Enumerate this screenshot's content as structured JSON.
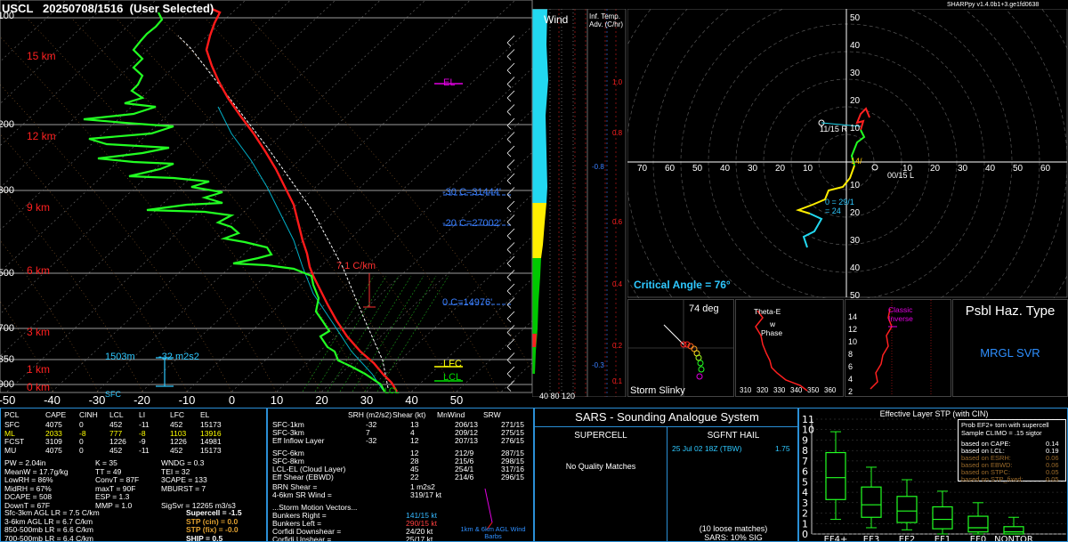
{
  "header": {
    "station": "USCL",
    "datetime": "20250708/1516",
    "selection": "(User Selected)",
    "version": "SHARPpy v1.4.0b1+3.ge1fd0638"
  },
  "skewt": {
    "height_labels": [
      "15 km",
      "12 km",
      "9 km",
      "6 km",
      "3 km",
      "1 km",
      "0 km"
    ],
    "pressure_labels": [
      "100",
      "200",
      "300",
      "500",
      "700",
      "850",
      "900"
    ],
    "temp_ticks": [
      "-50",
      "-40",
      "-30",
      "-20",
      "-10",
      "0",
      "10",
      "20",
      "30",
      "40",
      "50"
    ],
    "el_label": "EL",
    "lfc_label": "LFC",
    "lcl_label": "LCL",
    "iso_30": "-30 C=31444'",
    "iso_20": "-20 C=27002'",
    "iso_0": "0 C=14976'",
    "lapse_rate": "7.1 C/km",
    "eff_depth": "1503m",
    "eff_srh": "-32 m2s2",
    "sfc_label": "SFC",
    "lcl_small": "LCL"
  },
  "wind_col": {
    "title": "Wind",
    "inf_title": "Inf. Temp. Adv. (C/hr)",
    "adv_ticks": [
      "1.0",
      "0.8",
      "0.6",
      "0.4",
      "0.2",
      "0.1"
    ],
    "neg_ticks": [
      "-0.8",
      "-0.3"
    ],
    "bottom_label": "40 80 120"
  },
  "hodograph": {
    "rings_pos": [
      "10",
      "20",
      "30",
      "40",
      "50",
      "60",
      "70"
    ],
    "rings_neg": [
      "70",
      "60",
      "50",
      "40",
      "30",
      "20",
      "10"
    ],
    "y_pos": [
      "50",
      "40",
      "30",
      "20",
      "10"
    ],
    "y_neg": [
      "10",
      "20",
      "30",
      "40",
      "50"
    ],
    "critical_angle": "Critical Angle = 76°",
    "left_mover": "11/15 R",
    "right_mover": "00/15 L",
    "m1": "14/",
    "m2": "0 = 29/1",
    "m3": "= 24"
  },
  "storm_slinky": {
    "angle": "74 deg",
    "title": "Storm Slinky"
  },
  "theta_panel": {
    "label1": "Theta-E",
    "label2": "w",
    "label3": "Phase",
    "ticks": [
      "310",
      "320",
      "330",
      "340",
      "350",
      "360"
    ]
  },
  "vrot_panel": {
    "ticks": [
      "14",
      "12",
      "10",
      "8",
      "6",
      "4",
      "2"
    ],
    "label1": "Classic",
    "label2": "Inverse"
  },
  "hazard": {
    "title": "Psbl Haz. Type",
    "value": "MRGL SVR"
  },
  "thermo": {
    "headers": [
      "PCL",
      "CAPE",
      "CINH",
      "LCL",
      "LI",
      "LFC",
      "EL"
    ],
    "rows": [
      {
        "name": "SFC",
        "vals": [
          "4075",
          "0",
          "452",
          "-11",
          "452",
          "15173"
        ],
        "color": "#ffffff"
      },
      {
        "name": "ML",
        "vals": [
          "2033",
          "-8",
          "777",
          "-8",
          "1103",
          "13916"
        ],
        "color": "#ffffff"
      },
      {
        "name": "FCST",
        "vals": [
          "3109",
          "0",
          "1226",
          "-9",
          "1226",
          "14981"
        ],
        "color": "#ffffff"
      },
      {
        "name": "MU",
        "vals": [
          "4075",
          "0",
          "452",
          "-11",
          "452",
          "15173"
        ],
        "color": "#ffffff"
      }
    ],
    "col1": [
      "PW = 2.04in",
      "MeanW = 17.7g/kg",
      "LowRH = 86%",
      "MidRH = 67%",
      "DCAPE = 508",
      "DownT = 67F"
    ],
    "col2": [
      "K = 35",
      "TT = 49",
      "ConvT = 87F",
      "maxT = 90F",
      "ESP = 1.3",
      "MMP = 1.0"
    ],
    "col3": [
      "WNDG = 0.3",
      "TEI = 32",
      "3CAPE = 133",
      "MBURST = 7",
      "",
      "SigSvr = 12265 m3/s3"
    ],
    "lapse": [
      "Sfc-3km AGL LR = 7.5 C/km",
      "3-6km AGL LR = 6.7 C/km",
      "850-500mb LR = 6.6 C/km",
      "700-500mb LR = 6.4 C/km"
    ],
    "comp": [
      {
        "label": "Supercell = -1.5",
        "color": "#ffffff"
      },
      {
        "label": "STP (cin) = 0.0",
        "color": "#e0a030"
      },
      {
        "label": "STP (fix) = -0.0",
        "color": "#e0a030"
      },
      {
        "label": "SHIP = 0.5",
        "color": "#ffffff"
      }
    ]
  },
  "kinematics": {
    "headers": [
      "SRH (m2/s2)",
      "Shear (kt)",
      "MnWind",
      "SRW"
    ],
    "rows": [
      {
        "name": "SFC-1km",
        "vals": [
          "-32",
          "13",
          "206/13",
          "271/15"
        ]
      },
      {
        "name": "SFC-3km",
        "vals": [
          "7",
          "4",
          "209/12",
          "275/15"
        ]
      },
      {
        "name": "Eff Inflow Layer",
        "vals": [
          "-32",
          "12",
          "207/13",
          "276/15"
        ]
      },
      {
        "name": "SFC-6km",
        "vals": [
          "",
          "12",
          "212/9",
          "287/15"
        ]
      },
      {
        "name": "SFC-8km",
        "vals": [
          "",
          "28",
          "215/6",
          "298/15"
        ]
      },
      {
        "name": "LCL-EL (Cloud Layer)",
        "vals": [
          "",
          "45",
          "254/1",
          "317/16"
        ]
      },
      {
        "name": "Eff Shear (EBWD)",
        "vals": [
          "",
          "22",
          "214/6",
          "296/15"
        ]
      }
    ],
    "brn": "BRN Shear =",
    "brn_val": "1 m2s2",
    "srwind": "4-6km SR Wind =",
    "srwind_val": "319/17 kt",
    "storm_vectors": "...Storm Motion Vectors...",
    "vectors": [
      {
        "label": "Bunkers Right =",
        "val": "141/15 kt",
        "color": "#35b8ff"
      },
      {
        "label": "Bunkers Left =",
        "val": "290/15 kt",
        "color": "#ff4040"
      },
      {
        "label": "Corfidi Downshear =",
        "val": "24/20 kt",
        "color": "#ffffff"
      },
      {
        "label": "Corfidi Upshear =",
        "val": "25/17 kt",
        "color": "#ffffff"
      }
    ],
    "barb_caption": "1km & 6km AGL Wind Barbs"
  },
  "sars": {
    "title": "SARS - Sounding Analogue System",
    "supercell": "SUPERCELL",
    "sgfnt": "SGFNT HAIL",
    "match_date": "25 Jul 02 18Z (TBW)",
    "match_val": "1.75",
    "no_match": "No Quality Matches",
    "loose": "(10 loose matches)",
    "sars_pct": "SARS: 10% SIG"
  },
  "stp": {
    "title": "Effective Layer STP (with CIN)",
    "note_title": "Prob EF2+ torn with supercell",
    "note_sub": "Sample CLIMO = .15 sigtor",
    "probs": [
      {
        "label": "based on CAPE:",
        "val": "0.14",
        "color": "#ffffff"
      },
      {
        "label": "based on LCL:",
        "val": "0.19",
        "color": "#ffffff"
      },
      {
        "label": "based on ESRH:",
        "val": "0.06",
        "color": "#9a6a2a"
      },
      {
        "label": "based on EBWD:",
        "val": "0.06",
        "color": "#9a6a2a"
      },
      {
        "label": "based on STPC:",
        "val": "0.05",
        "color": "#9a6a2a"
      },
      {
        "label": "based on STP_fixed:",
        "val": "0.05",
        "color": "#9a6a2a"
      }
    ],
    "yticks": [
      "11",
      "10",
      "9",
      "8",
      "7",
      "6",
      "5",
      "4",
      "3",
      "2",
      "1",
      "0"
    ],
    "cats": [
      "EF4+",
      "EF3",
      "EF2",
      "EF1",
      "EF0",
      "NONTOR"
    ]
  },
  "chart_data": [
    {
      "type": "line",
      "title": "USCL 20250708/1516 (User Selected)",
      "xlabel": "",
      "ylabel": "",
      "xlim": [
        -50,
        50
      ],
      "series": []
    },
    {
      "type": "box",
      "title": "Effective Layer STP (with CIN)",
      "categories": [
        "EF4+",
        "EF3",
        "EF2",
        "EF1",
        "EF0",
        "NONTOR"
      ],
      "ylim": [
        0,
        11
      ],
      "boxes": [
        {
          "min": 1.4,
          "q1": 3.3,
          "median": 5.4,
          "q3": 7.8,
          "max": 9.8
        },
        {
          "min": 0.6,
          "q1": 1.6,
          "median": 2.8,
          "q3": 4.5,
          "max": 6.4
        },
        {
          "min": 0.4,
          "q1": 1.1,
          "median": 2.2,
          "q3": 3.6,
          "max": 5.2
        },
        {
          "min": 0.0,
          "q1": 0.5,
          "median": 1.4,
          "q3": 2.6,
          "max": 4.1
        },
        {
          "min": 0.0,
          "q1": 0.2,
          "median": 0.6,
          "q3": 1.7,
          "max": 3.0
        },
        {
          "min": 0.0,
          "q1": 0.0,
          "median": 0.2,
          "q3": 0.7,
          "max": 1.6
        }
      ]
    }
  ]
}
